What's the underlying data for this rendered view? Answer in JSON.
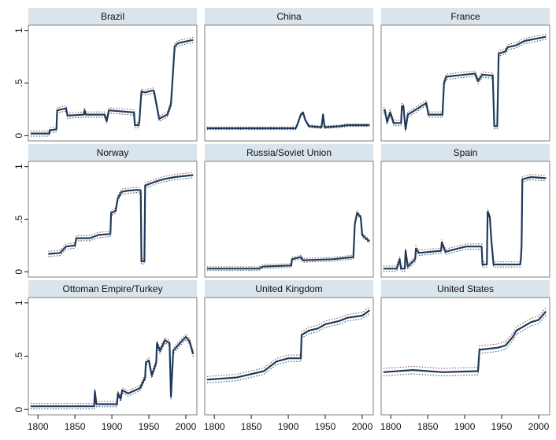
{
  "chart_data": {
    "type": "line",
    "layout": "3x3 small multiples",
    "x_ticks": [
      1800,
      1850,
      1900,
      1950,
      2000
    ],
    "y_ticks": [
      "0",
      ".5",
      "1"
    ],
    "y_tick_values": [
      0,
      0.5,
      1
    ],
    "xlim": [
      1787,
      2015
    ],
    "ylim": [
      -0.05,
      1.05
    ],
    "line_style": "solid estimate with dotted confidence bands",
    "colors": {
      "estimate": "#1f3a5a",
      "band": "#1f3a5a",
      "strip": "#d9e4ec"
    },
    "panels": [
      {
        "title": "Brazil",
        "band": 0.025,
        "series": [
          [
            1790,
            0.02
          ],
          [
            1815,
            0.02
          ],
          [
            1816,
            0.05
          ],
          [
            1825,
            0.06
          ],
          [
            1826,
            0.24
          ],
          [
            1838,
            0.26
          ],
          [
            1840,
            0.19
          ],
          [
            1862,
            0.2
          ],
          [
            1863,
            0.24
          ],
          [
            1865,
            0.2
          ],
          [
            1890,
            0.2
          ],
          [
            1893,
            0.14
          ],
          [
            1896,
            0.24
          ],
          [
            1930,
            0.22
          ],
          [
            1931,
            0.1
          ],
          [
            1936,
            0.1
          ],
          [
            1937,
            0.12
          ],
          [
            1940,
            0.42
          ],
          [
            1945,
            0.41
          ],
          [
            1955,
            0.43
          ],
          [
            1957,
            0.42
          ],
          [
            1964,
            0.16
          ],
          [
            1975,
            0.2
          ],
          [
            1980,
            0.3
          ],
          [
            1985,
            0.85
          ],
          [
            1990,
            0.88
          ],
          [
            2010,
            0.91
          ]
        ]
      },
      {
        "title": "China",
        "band": 0.012,
        "series": [
          [
            1790,
            0.07
          ],
          [
            1910,
            0.07
          ],
          [
            1912,
            0.1
          ],
          [
            1917,
            0.2
          ],
          [
            1920,
            0.22
          ],
          [
            1923,
            0.15
          ],
          [
            1928,
            0.09
          ],
          [
            1945,
            0.08
          ],
          [
            1947,
            0.2
          ],
          [
            1949,
            0.08
          ],
          [
            1970,
            0.09
          ],
          [
            1980,
            0.1
          ],
          [
            2010,
            0.1
          ]
        ]
      },
      {
        "title": "France",
        "band": 0.025,
        "series": [
          [
            1790,
            0.24
          ],
          [
            1792,
            0.24
          ],
          [
            1795,
            0.13
          ],
          [
            1799,
            0.22
          ],
          [
            1804,
            0.12
          ],
          [
            1814,
            0.12
          ],
          [
            1815,
            0.28
          ],
          [
            1817,
            0.28
          ],
          [
            1820,
            0.06
          ],
          [
            1823,
            0.2
          ],
          [
            1830,
            0.23
          ],
          [
            1848,
            0.31
          ],
          [
            1851,
            0.2
          ],
          [
            1870,
            0.2
          ],
          [
            1872,
            0.5
          ],
          [
            1875,
            0.56
          ],
          [
            1900,
            0.58
          ],
          [
            1914,
            0.59
          ],
          [
            1918,
            0.52
          ],
          [
            1924,
            0.58
          ],
          [
            1938,
            0.57
          ],
          [
            1940,
            0.09
          ],
          [
            1944,
            0.09
          ],
          [
            1946,
            0.78
          ],
          [
            1955,
            0.8
          ],
          [
            1958,
            0.84
          ],
          [
            1970,
            0.86
          ],
          [
            1981,
            0.9
          ],
          [
            2010,
            0.94
          ]
        ]
      },
      {
        "title": "Norway",
        "band": 0.025,
        "series": [
          [
            1814,
            0.17
          ],
          [
            1830,
            0.18
          ],
          [
            1838,
            0.24
          ],
          [
            1850,
            0.25
          ],
          [
            1852,
            0.32
          ],
          [
            1870,
            0.32
          ],
          [
            1882,
            0.35
          ],
          [
            1898,
            0.36
          ],
          [
            1899,
            0.56
          ],
          [
            1905,
            0.58
          ],
          [
            1908,
            0.7
          ],
          [
            1913,
            0.76
          ],
          [
            1920,
            0.77
          ],
          [
            1935,
            0.78
          ],
          [
            1939,
            0.77
          ],
          [
            1940,
            0.1
          ],
          [
            1944,
            0.1
          ],
          [
            1945,
            0.82
          ],
          [
            1960,
            0.86
          ],
          [
            1970,
            0.88
          ],
          [
            1985,
            0.9
          ],
          [
            2010,
            0.92
          ]
        ]
      },
      {
        "title": "Russia/Soviet Union",
        "band": 0.018,
        "series": [
          [
            1790,
            0.03
          ],
          [
            1860,
            0.03
          ],
          [
            1866,
            0.05
          ],
          [
            1904,
            0.06
          ],
          [
            1905,
            0.12
          ],
          [
            1917,
            0.14
          ],
          [
            1920,
            0.11
          ],
          [
            1960,
            0.12
          ],
          [
            1988,
            0.14
          ],
          [
            1990,
            0.45
          ],
          [
            1993,
            0.56
          ],
          [
            1998,
            0.52
          ],
          [
            2000,
            0.35
          ],
          [
            2008,
            0.3
          ],
          [
            2010,
            0.29
          ]
        ]
      },
      {
        "title": "Spain",
        "band": 0.025,
        "series": [
          [
            1790,
            0.03
          ],
          [
            1808,
            0.03
          ],
          [
            1812,
            0.12
          ],
          [
            1814,
            0.03
          ],
          [
            1819,
            0.03
          ],
          [
            1820,
            0.2
          ],
          [
            1823,
            0.05
          ],
          [
            1833,
            0.12
          ],
          [
            1834,
            0.22
          ],
          [
            1838,
            0.18
          ],
          [
            1868,
            0.2
          ],
          [
            1869,
            0.28
          ],
          [
            1874,
            0.19
          ],
          [
            1890,
            0.22
          ],
          [
            1902,
            0.24
          ],
          [
            1923,
            0.24
          ],
          [
            1924,
            0.07
          ],
          [
            1930,
            0.07
          ],
          [
            1931,
            0.57
          ],
          [
            1934,
            0.52
          ],
          [
            1936,
            0.3
          ],
          [
            1939,
            0.07
          ],
          [
            1975,
            0.07
          ],
          [
            1976,
            0.12
          ],
          [
            1977,
            0.25
          ],
          [
            1978,
            0.88
          ],
          [
            1990,
            0.9
          ],
          [
            2010,
            0.89
          ]
        ]
      },
      {
        "title": "Ottoman Empire/Turkey",
        "band": 0.025,
        "series": [
          [
            1790,
            0.03
          ],
          [
            1870,
            0.03
          ],
          [
            1876,
            0.03
          ],
          [
            1877,
            0.17
          ],
          [
            1879,
            0.05
          ],
          [
            1907,
            0.05
          ],
          [
            1908,
            0.15
          ],
          [
            1912,
            0.1
          ],
          [
            1914,
            0.18
          ],
          [
            1922,
            0.15
          ],
          [
            1938,
            0.2
          ],
          [
            1945,
            0.3
          ],
          [
            1946,
            0.44
          ],
          [
            1950,
            0.46
          ],
          [
            1954,
            0.32
          ],
          [
            1960,
            0.44
          ],
          [
            1961,
            0.62
          ],
          [
            1965,
            0.55
          ],
          [
            1972,
            0.65
          ],
          [
            1978,
            0.62
          ],
          [
            1980,
            0.12
          ],
          [
            1983,
            0.55
          ],
          [
            1993,
            0.63
          ],
          [
            2000,
            0.68
          ],
          [
            2005,
            0.64
          ],
          [
            2010,
            0.52
          ]
        ]
      },
      {
        "title": "United Kingdom",
        "band": 0.03,
        "series": [
          [
            1790,
            0.28
          ],
          [
            1830,
            0.3
          ],
          [
            1867,
            0.36
          ],
          [
            1884,
            0.45
          ],
          [
            1900,
            0.48
          ],
          [
            1917,
            0.48
          ],
          [
            1918,
            0.7
          ],
          [
            1928,
            0.74
          ],
          [
            1940,
            0.76
          ],
          [
            1950,
            0.8
          ],
          [
            1969,
            0.83
          ],
          [
            1980,
            0.86
          ],
          [
            2000,
            0.88
          ],
          [
            2010,
            0.93
          ]
        ]
      },
      {
        "title": "United States",
        "band": 0.035,
        "series": [
          [
            1790,
            0.35
          ],
          [
            1830,
            0.37
          ],
          [
            1870,
            0.35
          ],
          [
            1918,
            0.36
          ],
          [
            1920,
            0.56
          ],
          [
            1945,
            0.58
          ],
          [
            1955,
            0.6
          ],
          [
            1965,
            0.68
          ],
          [
            1970,
            0.74
          ],
          [
            1980,
            0.78
          ],
          [
            1990,
            0.82
          ],
          [
            2000,
            0.84
          ],
          [
            2010,
            0.92
          ]
        ]
      }
    ]
  }
}
